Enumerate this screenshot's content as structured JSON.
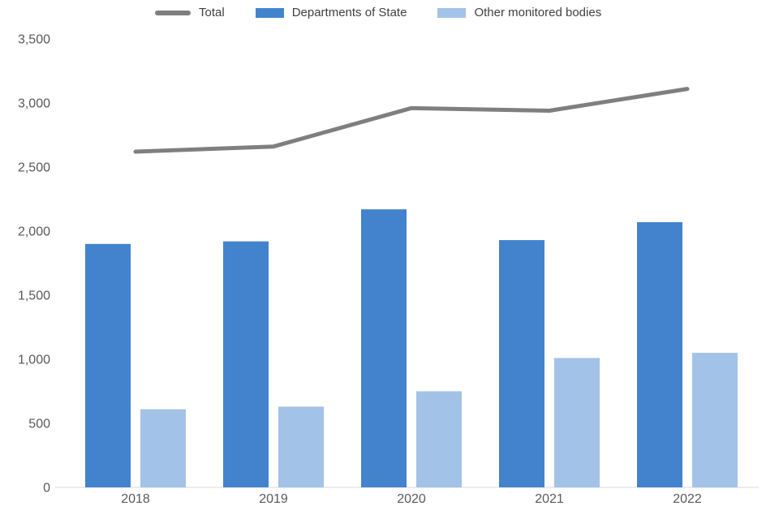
{
  "chart_data": {
    "type": "combo",
    "categories": [
      "2018",
      "2019",
      "2020",
      "2021",
      "2022"
    ],
    "series": [
      {
        "name": "Total",
        "type": "line",
        "color": "#7F7F7F",
        "values": [
          2620,
          2660,
          2960,
          2940,
          3110
        ]
      },
      {
        "name": "Departments of State",
        "type": "bar",
        "color": "#4383CD",
        "values": [
          1900,
          1920,
          2170,
          1930,
          2070
        ]
      },
      {
        "name": "Other monitored bodies",
        "type": "bar",
        "color": "#A3C2E8",
        "values": [
          610,
          630,
          750,
          1010,
          1050
        ]
      }
    ],
    "ylim": [
      0,
      3500
    ],
    "ytick_step": 500,
    "yticks": [
      "0",
      "500",
      "1,000",
      "1,500",
      "2,000",
      "2,500",
      "3,000",
      "3,500"
    ],
    "grid": false,
    "legend_position": "top",
    "axis_label_color": "#595959",
    "axis_line_color": "#D9D9D9"
  }
}
